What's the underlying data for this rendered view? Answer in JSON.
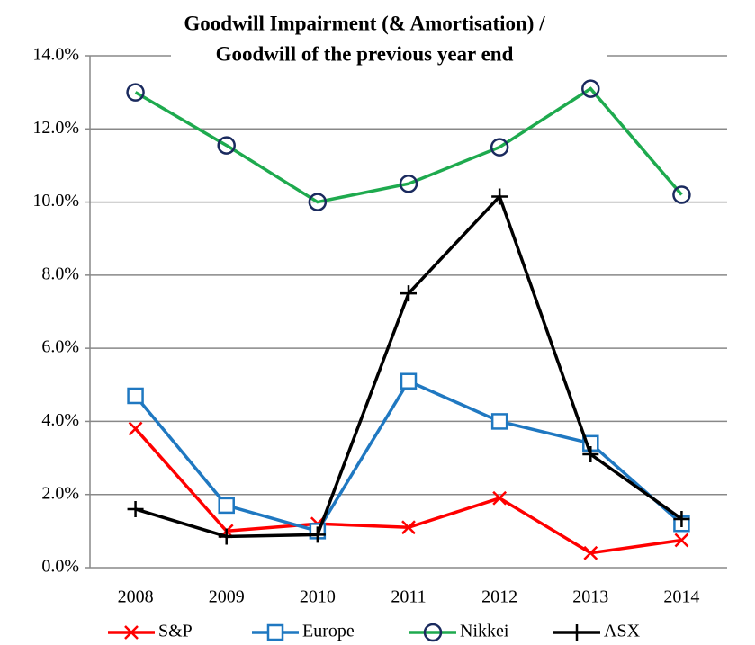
{
  "chart_data": {
    "type": "line",
    "title": [
      "Goodwill Impairment (& Amortisation) /",
      "Goodwill of the previous year end"
    ],
    "categories": [
      "2008",
      "2009",
      "2010",
      "2011",
      "2012",
      "2013",
      "2014"
    ],
    "series": [
      {
        "name": "S&P",
        "color": "#ff0000",
        "marker": "x",
        "values": [
          3.8,
          1.0,
          1.2,
          1.1,
          1.9,
          0.4,
          0.75
        ]
      },
      {
        "name": "Europe",
        "color": "#1f78c1",
        "marker": "square",
        "values": [
          4.7,
          1.7,
          1.0,
          5.1,
          4.0,
          3.4,
          1.2
        ]
      },
      {
        "name": "Nikkei",
        "color": "#1eaa4e",
        "marker": "circle",
        "marker_color": "#1a2a5e",
        "values": [
          13.0,
          11.55,
          10.0,
          10.5,
          11.5,
          13.1,
          10.2
        ]
      },
      {
        "name": "ASX",
        "color": "#000000",
        "marker": "plus",
        "values": [
          1.6,
          0.85,
          0.9,
          7.5,
          10.15,
          3.1,
          1.33
        ]
      }
    ],
    "ylim": [
      0,
      14
    ],
    "yticks": [
      {
        "value": 0,
        "label": "0.0%"
      },
      {
        "value": 2,
        "label": "2.0%"
      },
      {
        "value": 4,
        "label": "4.0%"
      },
      {
        "value": 6,
        "label": "6.0%"
      },
      {
        "value": 8,
        "label": "8.0%"
      },
      {
        "value": 10,
        "label": "10.0%"
      },
      {
        "value": 12,
        "label": "12.0%"
      },
      {
        "value": 14,
        "label": "14.0%"
      }
    ],
    "grid": true,
    "legend": "bottom"
  }
}
